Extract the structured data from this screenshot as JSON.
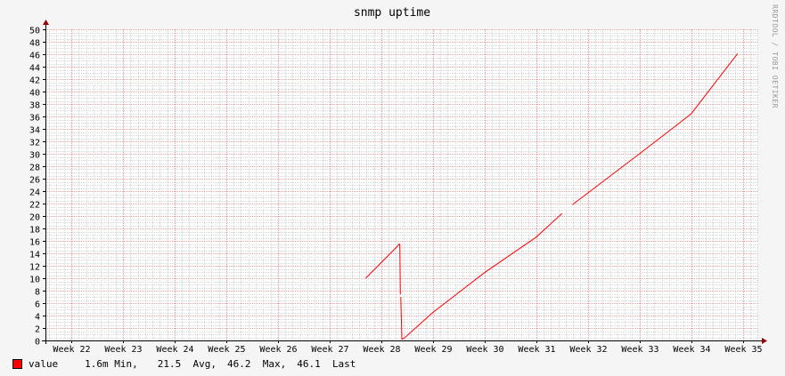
{
  "chart_data": {
    "type": "line",
    "title": "snmp uptime",
    "watermark": "RRDTOOL / TOBI OETIKER",
    "xlabel": "",
    "ylabel": "",
    "ylim": [
      0,
      50
    ],
    "xlim": [
      21.5,
      35.3
    ],
    "x_tick_values": [
      22,
      23,
      24,
      25,
      26,
      27,
      28,
      29,
      30,
      31,
      32,
      33,
      34,
      35
    ],
    "x_tick_labels": [
      "Week 22",
      "Week 23",
      "Week 24",
      "Week 25",
      "Week 26",
      "Week 27",
      "Week 28",
      "Week 29",
      "Week 30",
      "Week 31",
      "Week 32",
      "Week 33",
      "Week 34",
      "Week 35"
    ],
    "y_ticks": [
      0,
      2,
      4,
      6,
      8,
      10,
      12,
      14,
      16,
      18,
      20,
      22,
      24,
      26,
      28,
      30,
      32,
      34,
      36,
      38,
      40,
      42,
      44,
      46,
      48,
      50
    ],
    "grid": true,
    "legend_position": "bottom-left",
    "colors": {
      "series": "#ff0000",
      "major_grid": "#e8a0a0",
      "minor_grid": "#d6d6d6",
      "axis": "#000000",
      "arrow": "#990000",
      "plot_bg": "#ffffff",
      "canvas_bg": "#f5f5f5"
    },
    "series": [
      {
        "name": "value",
        "segments": [
          {
            "x": [
              27.7,
              28.3,
              28.35,
              28.36,
              28.37
            ],
            "y": [
              10.0,
              15.0,
              15.5,
              15.4,
              7.4
            ]
          },
          {
            "x": [
              28.38,
              28.4,
              28.45
            ],
            "y": [
              7.0,
              0.2,
              0.4
            ]
          },
          {
            "x": [
              28.45,
              29.0,
              30.0,
              31.0,
              31.5
            ],
            "y": [
              0.4,
              4.5,
              10.9,
              16.6,
              20.4
            ]
          },
          {
            "x": [
              31.7,
              32.0,
              33.0,
              34.0,
              34.9
            ],
            "y": [
              21.8,
              23.7,
              30.0,
              36.4,
              46.1
            ]
          }
        ]
      }
    ]
  },
  "legend": {
    "label": "value",
    "min": "1.6m Min,",
    "avg": "21.5  Avg,",
    "max": "46.2  Max,",
    "last": "46.1  Last"
  }
}
